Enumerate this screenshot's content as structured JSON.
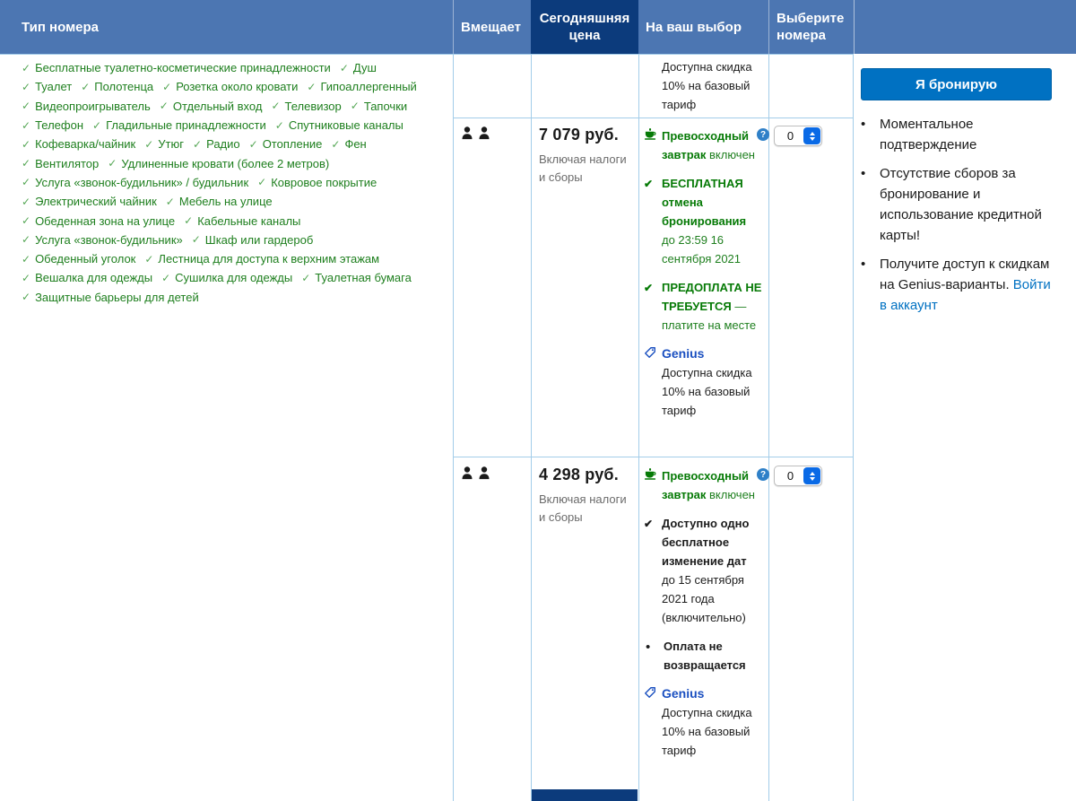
{
  "colors": {
    "header_bg": "#4c76b2",
    "price_header_bg": "#0c3b7c",
    "table_border": "#a3cde9",
    "amenity_green": "#1e7f1e",
    "condition_green": "#067a06",
    "link_blue": "#0071c2",
    "genius_blue": "#1a4fc0",
    "button_blue": "#0071c2",
    "stepper_blue": "#0a6ae6"
  },
  "header": {
    "room_type": "Тип номера",
    "sleeps": "Вмещает",
    "price_today": "Сегодняшняя цена",
    "your_choices": "На ваш выбор",
    "select_rooms": "Выберите номера"
  },
  "amenities": {
    "lines": [
      [
        "Бесплатные туалетно-косметические принадлежности",
        "Душ"
      ],
      [
        "Туалет",
        "Полотенца",
        "Розетка около кровати",
        "Гипоаллергенный"
      ],
      [
        "Видеопроигрыватель",
        "Отдельный вход",
        "Телевизор",
        "Тапочки"
      ],
      [
        "Телефон",
        "Гладильные принадлежности",
        "Спутниковые каналы"
      ],
      [
        "Кофеварка/чайник",
        "Утюг",
        "Радио",
        "Отопление",
        "Фен"
      ],
      [
        "Вентилятор",
        "Удлиненные кровати (более 2 метров)"
      ],
      [
        "Услуга «звонок-будильник» / будильник",
        "Ковровое покрытие"
      ],
      [
        "Электрический чайник",
        "Мебель на улице"
      ],
      [
        "Обеденная зона на улице",
        "Кабельные каналы"
      ],
      [
        "Услуга «звонок-будильник»",
        "Шкаф или гардероб"
      ],
      [
        "Обеденный уголок",
        "Лестница для доступа к верхним этажам"
      ],
      [
        "Вешалка для одежды",
        "Сушилка для одежды",
        "Туалетная бумага"
      ],
      [
        "Защитные барьеры для детей"
      ]
    ]
  },
  "rows": [
    {
      "kind": "partial",
      "conditions": [
        {
          "icon": null,
          "color": "black",
          "normal": "Доступна скидка 10% на базовый тариф"
        }
      ]
    },
    {
      "kind": "full",
      "occupancy": 2,
      "price": "7 079 руб.",
      "price_note": "Включая налоги и сборы",
      "select_value": "0",
      "conditions": [
        {
          "icon": "cup-icon",
          "color": "green",
          "bold": "Превосходный завтрак",
          "normal": "включен",
          "help": true
        },
        {
          "icon": "check-icon",
          "color": "green",
          "bold": "БЕСПЛАТНАЯ отмена бронирования",
          "normal": "до 23:59 16 сентября 2021"
        },
        {
          "icon": "check-icon",
          "color": "green",
          "bold": "ПРЕДОПЛАТА НЕ ТРЕБУЕТСЯ",
          "normal": "— платите на месте"
        },
        {
          "icon": "tag-icon",
          "color": "black",
          "brand": "Genius",
          "normal": "Доступна скидка 10% на базовый тариф"
        }
      ]
    },
    {
      "kind": "full",
      "occupancy": 2,
      "price": "4 298 руб.",
      "price_note": "Включая налоги и сборы",
      "select_value": "0",
      "conditions": [
        {
          "icon": "cup-icon",
          "color": "green",
          "bold": "Превосходный завтрак",
          "normal": "включен",
          "help": true
        },
        {
          "icon": "check-icon",
          "color": "black",
          "bold": "Доступно одно бесплатное изменение дат",
          "normal": "до 15 сентября 2021 года (включительно)"
        },
        {
          "icon": "bullet-icon",
          "color": "black",
          "bold": "Оплата не возвращается"
        },
        {
          "icon": "tag-icon",
          "color": "black",
          "brand": "Genius",
          "normal": "Доступна скидка 10% на базовый тариф"
        }
      ]
    }
  ],
  "sidebar": {
    "book_button": "Я бронирую",
    "benefits": [
      {
        "text": "Моментальное подтверждение"
      },
      {
        "text": "Отсутствие сборов за бронирование и использование кредитной карты!"
      },
      {
        "text": "Получите доступ к скидкам на Genius-варианты.",
        "link": "Войти в аккаунт"
      }
    ]
  }
}
